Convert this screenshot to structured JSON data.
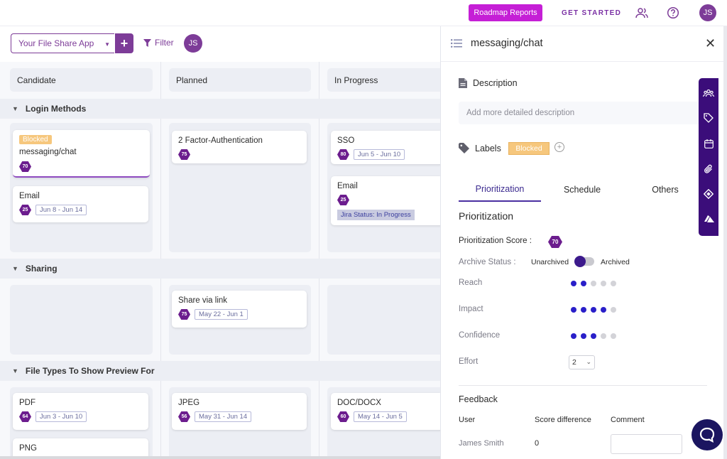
{
  "topbar": {
    "roadmap_reports": "Roadmap Reports",
    "get_started": "GET STARTED",
    "user_initials": "JS"
  },
  "toolbar": {
    "app_name": "Your File Share App",
    "add_symbol": "+",
    "filter_label": "Filter",
    "user_initials": "JS"
  },
  "columns": [
    "Candidate",
    "Planned",
    "In Progress"
  ],
  "groups": [
    {
      "name": "Login Methods",
      "candidate": [
        {
          "blocked": "Blocked",
          "title": "messaging/chat",
          "score": "70"
        },
        {
          "title": "Email",
          "score": "25",
          "dates": "Jun 8 - Jun 14"
        }
      ],
      "planned": [
        {
          "title": "2 Factor-Authentication",
          "score": "75"
        }
      ],
      "in_progress": [
        {
          "title": "SSO",
          "score": "80",
          "dates": "Jun 5 - Jun 10"
        },
        {
          "title": "Email",
          "score": "25",
          "jira": "Jira Status: In Progress"
        }
      ]
    },
    {
      "name": "Sharing",
      "planned": [
        {
          "title": "Share via link",
          "score": "75",
          "dates": "May 22 - Jun 1"
        }
      ]
    },
    {
      "name": "File Types To Show Preview For",
      "candidate": [
        {
          "title": "PDF",
          "score": "64",
          "dates": "Jun 3 - Jun 10"
        },
        {
          "title": "PNG"
        }
      ],
      "planned": [
        {
          "title": "JPEG",
          "score": "56",
          "dates": "May 31 - Jun 14"
        }
      ],
      "in_progress": [
        {
          "title": "DOC/DOCX",
          "score": "60",
          "dates": "May 14 - Jun 5"
        }
      ]
    }
  ],
  "panel": {
    "title": "messaging/chat",
    "description_label": "Description",
    "description_placeholder": "Add more detailed description",
    "labels_label": "Labels",
    "label_blocked": "Blocked",
    "tabs": [
      "Prioritization",
      "Schedule",
      "Others"
    ],
    "prioritization_title": "Prioritization",
    "score_label": "Prioritization Score :",
    "score_value": "70",
    "archive_label": "Archive Status :",
    "unarchived": "Unarchived",
    "archived": "Archived",
    "reach_label": "Reach",
    "reach_level": 2,
    "impact_label": "Impact",
    "impact_level": 4,
    "confidence_label": "Confidence",
    "confidence_level": 3,
    "effort_label": "Effort",
    "effort_value": "2",
    "feedback_label": "Feedback",
    "fb_col_user": "User",
    "fb_col_score": "Score difference",
    "fb_col_comment": "Comment",
    "fb_user": "James Smith",
    "fb_score": "0"
  },
  "colors": {
    "accent": "#7d3c98",
    "roadmap_button": "#c51fd6",
    "dot_on": "#2a1fc9",
    "side_toolbar": "#3b0d7a"
  },
  "icons": [
    "team-icon",
    "users-icon",
    "help-icon",
    "filter-icon",
    "list-icon",
    "close-icon",
    "document-icon",
    "tag-icon",
    "calendar-icon",
    "attachment-icon",
    "jira-icon",
    "azure-icon",
    "chat-icon"
  ]
}
